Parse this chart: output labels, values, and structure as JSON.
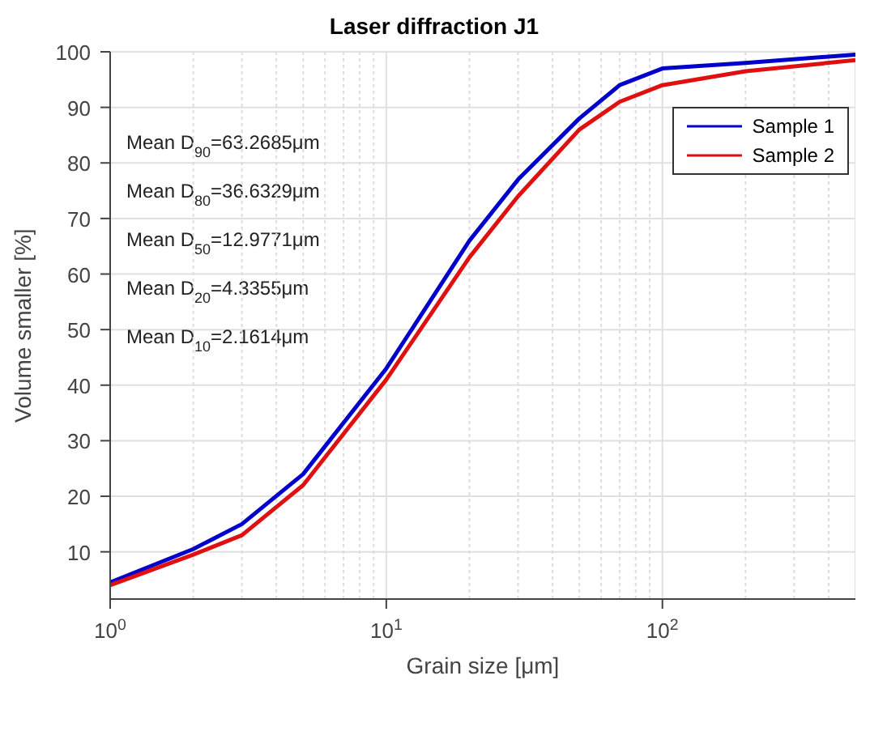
{
  "chart_data": {
    "type": "line",
    "title": "Laser diffraction J1",
    "xlabel": "Grain size [μm]",
    "ylabel": "Volume smaller [%]",
    "x": [
      1,
      2,
      3,
      5,
      10,
      20,
      30,
      50,
      70,
      100,
      200,
      500
    ],
    "series": [
      {
        "name": "Sample 1",
        "color": "#0000cc",
        "values": [
          4.5,
          10.5,
          15,
          24,
          43,
          66,
          77,
          88,
          94,
          97,
          98,
          99.5
        ]
      },
      {
        "name": "Sample 2",
        "color": "#e01010",
        "values": [
          4,
          9.5,
          13,
          22,
          41,
          63,
          74,
          86,
          91,
          94,
          96.5,
          98.5
        ]
      }
    ],
    "log": "x",
    "xlim": [
      1,
      500
    ],
    "xticks": [
      {
        "value": 1,
        "label": "10$^{0}$"
      },
      {
        "value": 10,
        "label": "10$^{1}$"
      },
      {
        "value": 100,
        "label": "10$^{2}$"
      }
    ],
    "ylim": [
      1.5,
      100
    ],
    "yticks": [
      10,
      20,
      30,
      40,
      50,
      60,
      70,
      80,
      90,
      100
    ],
    "grid": true,
    "legend": "top right",
    "marker": "none",
    "line_style": "solid",
    "annotations": [
      "Mean D$_{90}$=63.2685μm",
      "Mean D$_{80}$=36.6329μm",
      "Mean D$_{50}$=12.9771μm",
      "Mean D$_{20}$=4.3355μm",
      "Mean D$_{10}$=2.1614μm"
    ]
  }
}
